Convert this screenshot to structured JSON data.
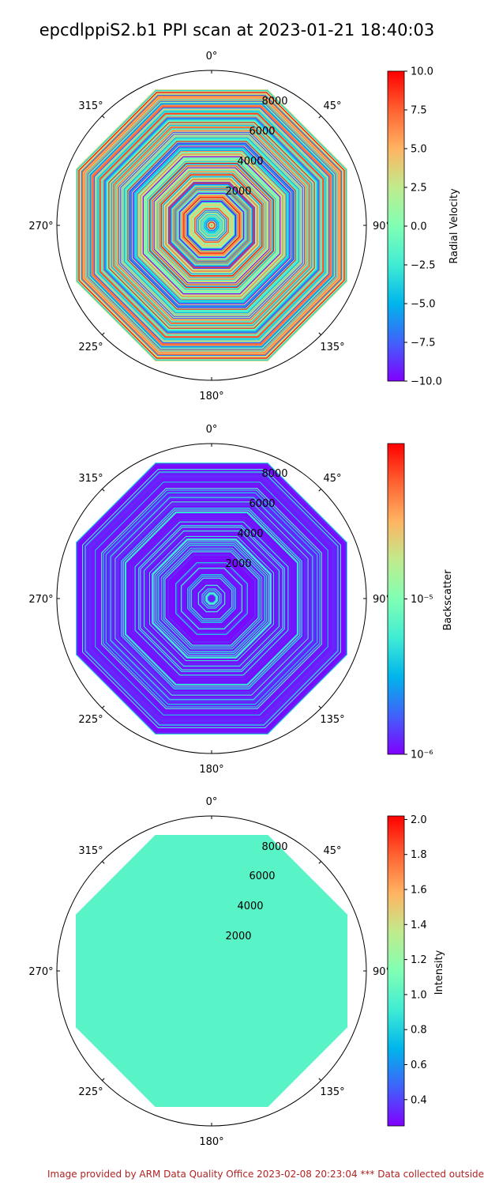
{
  "figure": {
    "title": "epcdlppiS2.b1 PPI scan at 2023-01-21 18:40:03",
    "footer": "Image provided by ARM Data Quality Office 2023-02-08 20:23:04    *** Data collected outside"
  },
  "chart_data": [
    {
      "type": "polar-heatmap",
      "angle_ticks": [
        "0°",
        "45°",
        "90°",
        "135°",
        "180°",
        "225°",
        "270°",
        "315°"
      ],
      "radial_ticks": [
        2000,
        4000,
        6000,
        8000
      ],
      "rmax": 10000,
      "data_extent": 9500,
      "colorbar": {
        "label": "Radial Velocity",
        "scale": "linear",
        "range": [
          -10,
          10
        ],
        "ticks": [
          "10.0",
          "7.5",
          "5.0",
          "2.5",
          "0.0",
          "−2.5",
          "−5.0",
          "−7.5",
          "−10.0"
        ],
        "tick_values": [
          10,
          7.5,
          5,
          2.5,
          0,
          -2.5,
          -5,
          -7.5,
          -10
        ]
      },
      "pattern": "mixed"
    },
    {
      "type": "polar-heatmap",
      "angle_ticks": [
        "0°",
        "45°",
        "90°",
        "135°",
        "180°",
        "225°",
        "270°",
        "315°"
      ],
      "radial_ticks": [
        2000,
        4000,
        6000,
        8000
      ],
      "rmax": 10000,
      "data_extent": 9500,
      "colorbar": {
        "label": "Backscatter",
        "scale": "log",
        "range": [
          1e-06,
          0.0001
        ],
        "ticks": [
          "10⁻⁵",
          "10⁻⁶"
        ],
        "tick_values": [
          1e-05,
          1e-06
        ]
      },
      "pattern": "low"
    },
    {
      "type": "polar-heatmap",
      "angle_ticks": [
        "0°",
        "45°",
        "90°",
        "135°",
        "180°",
        "225°",
        "270°",
        "315°"
      ],
      "radial_ticks": [
        2000,
        4000,
        6000,
        8000
      ],
      "rmax": 10000,
      "data_extent": 9500,
      "colorbar": {
        "label": "Intensity",
        "scale": "linear",
        "range": [
          0.25,
          2.02
        ],
        "ticks": [
          "2.0",
          "1.8",
          "1.6",
          "1.4",
          "1.2",
          "1.0",
          "0.8",
          "0.6",
          "0.4"
        ],
        "tick_values": [
          2.0,
          1.8,
          1.6,
          1.4,
          1.2,
          1.0,
          0.8,
          0.6,
          0.4
        ]
      },
      "pattern": "uniform",
      "uniform_value": 1.0
    }
  ]
}
